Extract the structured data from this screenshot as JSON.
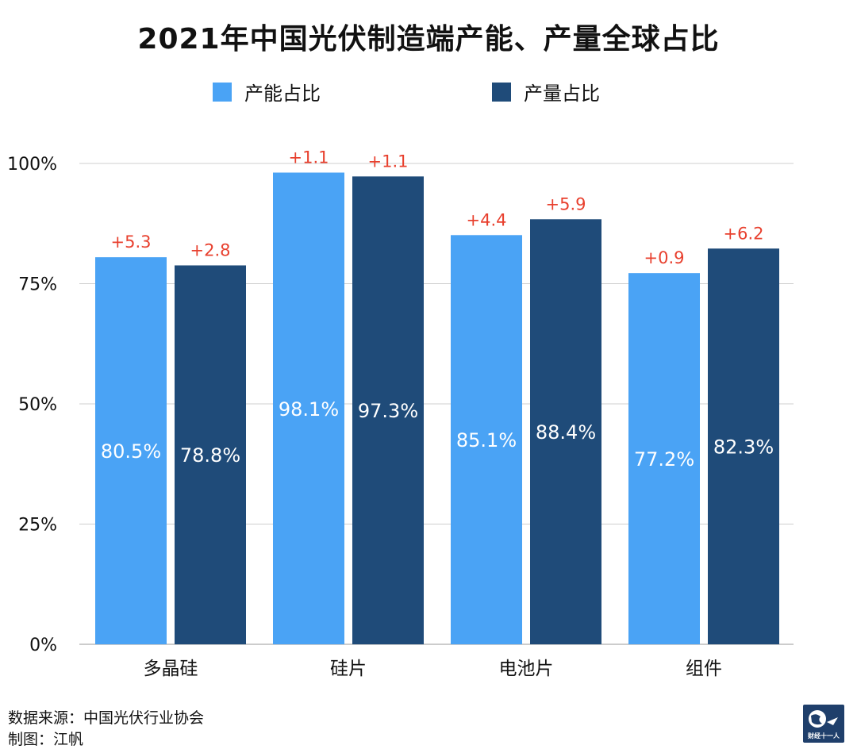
{
  "chart_data": {
    "type": "bar",
    "title": "2021年中国光伏制造端产能、产量全球占比",
    "categories": [
      "多晶硅",
      "硅片",
      "电池片",
      "组件"
    ],
    "series": [
      {
        "name": "产能占比",
        "color": "#4aa3f5",
        "values": [
          80.5,
          98.1,
          85.1,
          77.2
        ],
        "value_labels": [
          "80.5%",
          "98.1%",
          "85.1%",
          "77.2%"
        ],
        "change_labels": [
          "+5.3",
          "+1.1",
          "+4.4",
          "+0.9"
        ]
      },
      {
        "name": "产量占比",
        "color": "#1f4b79",
        "values": [
          78.8,
          97.3,
          88.4,
          82.3
        ],
        "value_labels": [
          "78.8%",
          "97.3%",
          "88.4%",
          "82.3%"
        ],
        "change_labels": [
          "+2.8",
          "+1.1",
          "+5.9",
          "+6.2"
        ]
      }
    ],
    "y_ticks": [
      "0%",
      "25%",
      "50%",
      "75%",
      "100%"
    ],
    "y_tick_values": [
      0,
      25,
      50,
      75,
      100
    ],
    "ylim": [
      0,
      100
    ],
    "grid": true,
    "legend_position": "top-center",
    "change_label_color": "#e8402e"
  },
  "footer": {
    "source": "数据来源：中国光伏行业协会",
    "author": "制图：江帆"
  },
  "logo": {
    "text": "财经十一人"
  }
}
